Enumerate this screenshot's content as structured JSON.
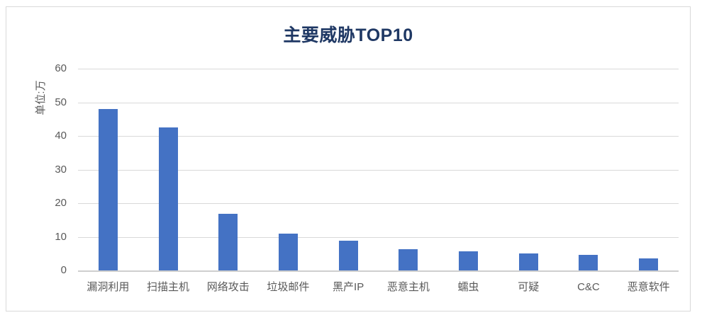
{
  "chart_data": {
    "type": "bar",
    "title": "主要威胁TOP10",
    "xlabel": "",
    "ylabel": "单位:万",
    "categories": [
      "漏洞利用",
      "扫描主机",
      "网络攻击",
      "垃圾邮件",
      "黑产IP",
      "恶意主机",
      "蠕虫",
      "可疑",
      "C&C",
      "恶意软件"
    ],
    "values": [
      48,
      42.5,
      16.8,
      11,
      8.9,
      6.4,
      5.6,
      5.1,
      4.7,
      3.5
    ],
    "ylim": [
      0,
      60
    ],
    "yticks": [
      0,
      10,
      20,
      30,
      40,
      50,
      60
    ],
    "grid": true,
    "legend": false,
    "colors": {
      "bar": "#4472c4",
      "title": "#1f3864",
      "axis_text": "#595959",
      "gridline": "#d9d9d9",
      "axis_line": "#cfcfcf",
      "card_border": "#d9d9d9"
    }
  }
}
